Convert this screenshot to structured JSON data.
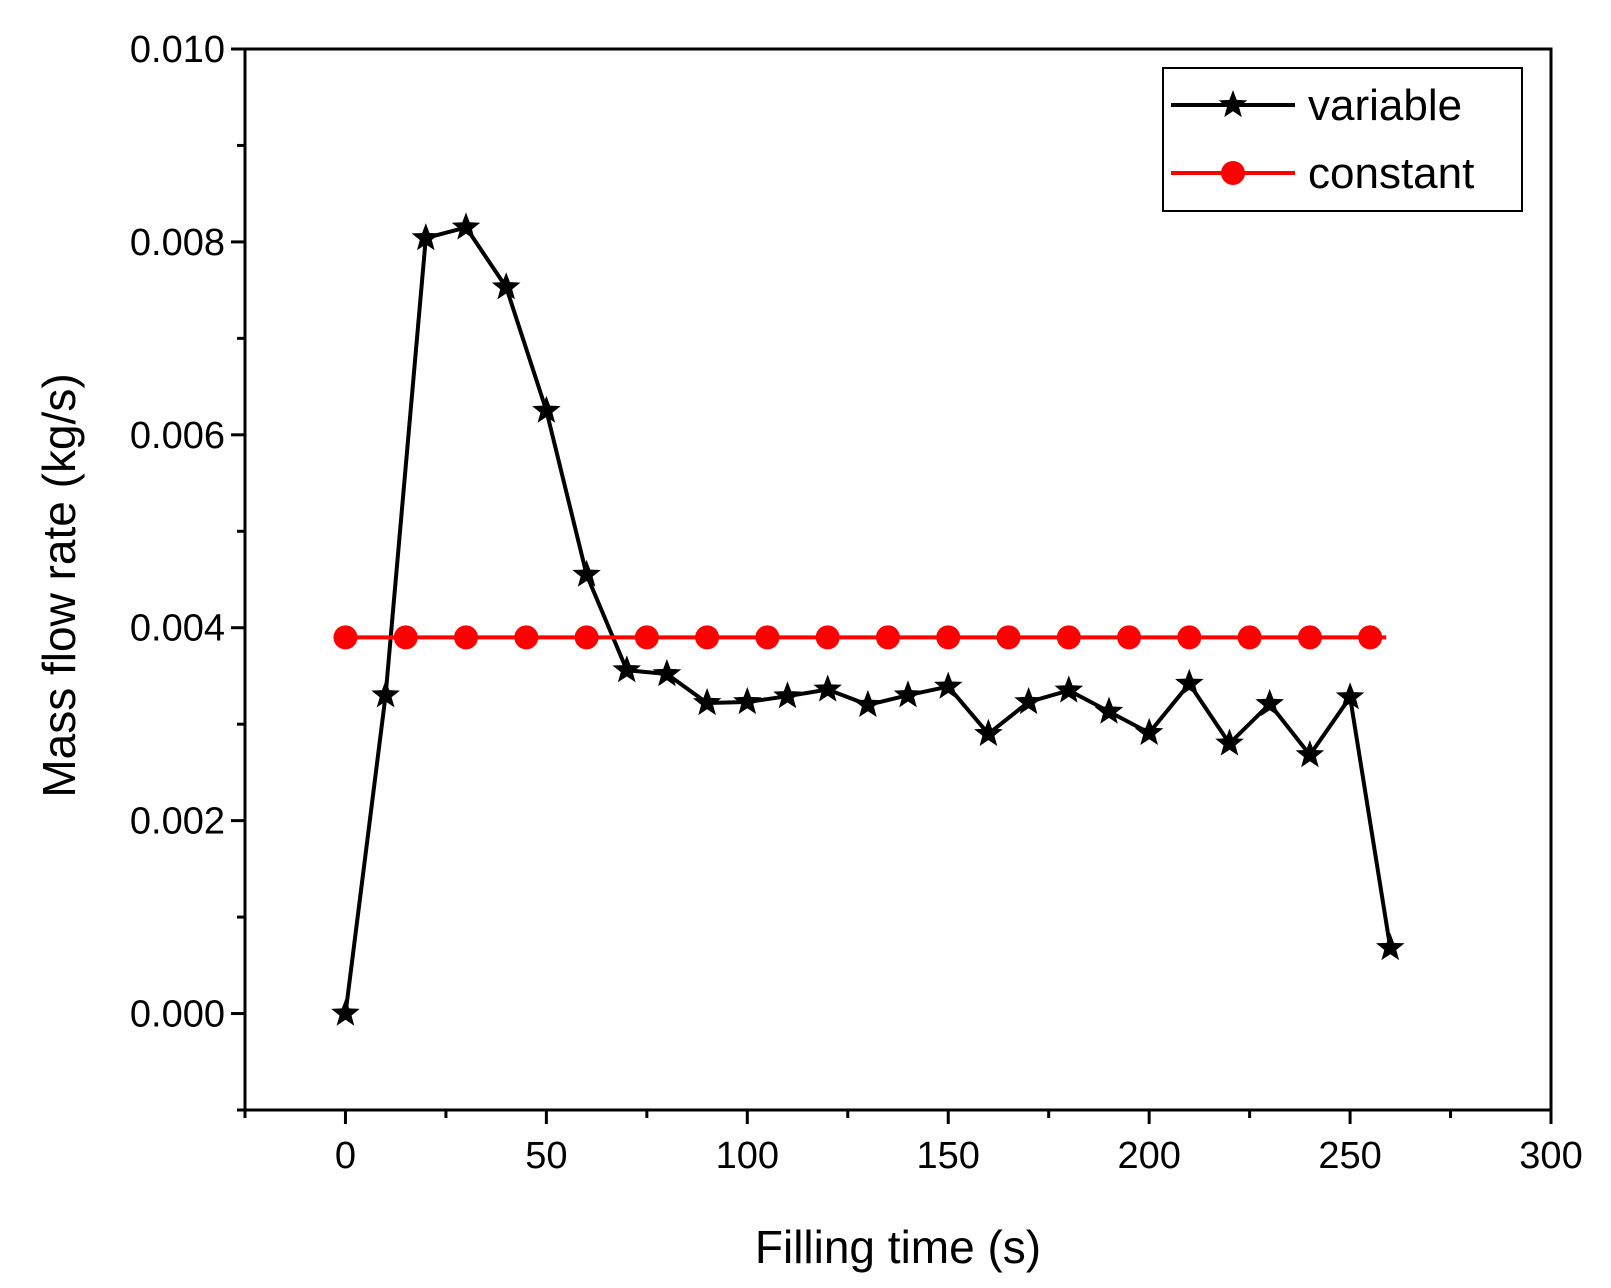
{
  "chart_data": {
    "type": "line",
    "title": "",
    "xlabel": "Filling time (s)",
    "ylabel": "Mass flow rate (kg/s)",
    "xlim": [
      -25,
      300
    ],
    "ylim": [
      -0.001,
      0.01
    ],
    "x_ticks": [
      0,
      50,
      100,
      150,
      200,
      250,
      300
    ],
    "x_tick_labels": [
      "0",
      "50",
      "100",
      "150",
      "200",
      "250",
      "300"
    ],
    "y_ticks": [
      0.0,
      0.002,
      0.004,
      0.006,
      0.008,
      0.01
    ],
    "y_tick_labels": [
      "0.000",
      "0.002",
      "0.004",
      "0.006",
      "0.008",
      "0.010"
    ],
    "grid": false,
    "legend_position": "top-right",
    "series": [
      {
        "name": "variable",
        "color": "#000000",
        "marker": "star",
        "x": [
          0,
          10,
          20,
          30,
          40,
          50,
          60,
          70,
          80,
          90,
          100,
          110,
          120,
          130,
          140,
          150,
          160,
          170,
          180,
          190,
          200,
          210,
          220,
          230,
          240,
          250,
          260
        ],
        "values": [
          0.0,
          0.0033,
          0.00804,
          0.00815,
          0.00753,
          0.00625,
          0.00455,
          0.00356,
          0.00352,
          0.00322,
          0.00323,
          0.00329,
          0.00336,
          0.0032,
          0.0033,
          0.00339,
          0.0029,
          0.00323,
          0.00335,
          0.00313,
          0.00291,
          0.00342,
          0.0028,
          0.00321,
          0.00268,
          0.00328,
          0.00068
        ]
      },
      {
        "name": "constant",
        "color": "#ff0000",
        "marker": "circle",
        "x": [
          0,
          15,
          30,
          45,
          60,
          75,
          90,
          105,
          120,
          135,
          150,
          165,
          180,
          195,
          210,
          225,
          240,
          255
        ],
        "values": [
          0.0039,
          0.0039,
          0.0039,
          0.0039,
          0.0039,
          0.0039,
          0.0039,
          0.0039,
          0.0039,
          0.0039,
          0.0039,
          0.0039,
          0.0039,
          0.0039,
          0.0039,
          0.0039,
          0.0039,
          0.0039
        ],
        "line_end_x": 259
      }
    ]
  }
}
